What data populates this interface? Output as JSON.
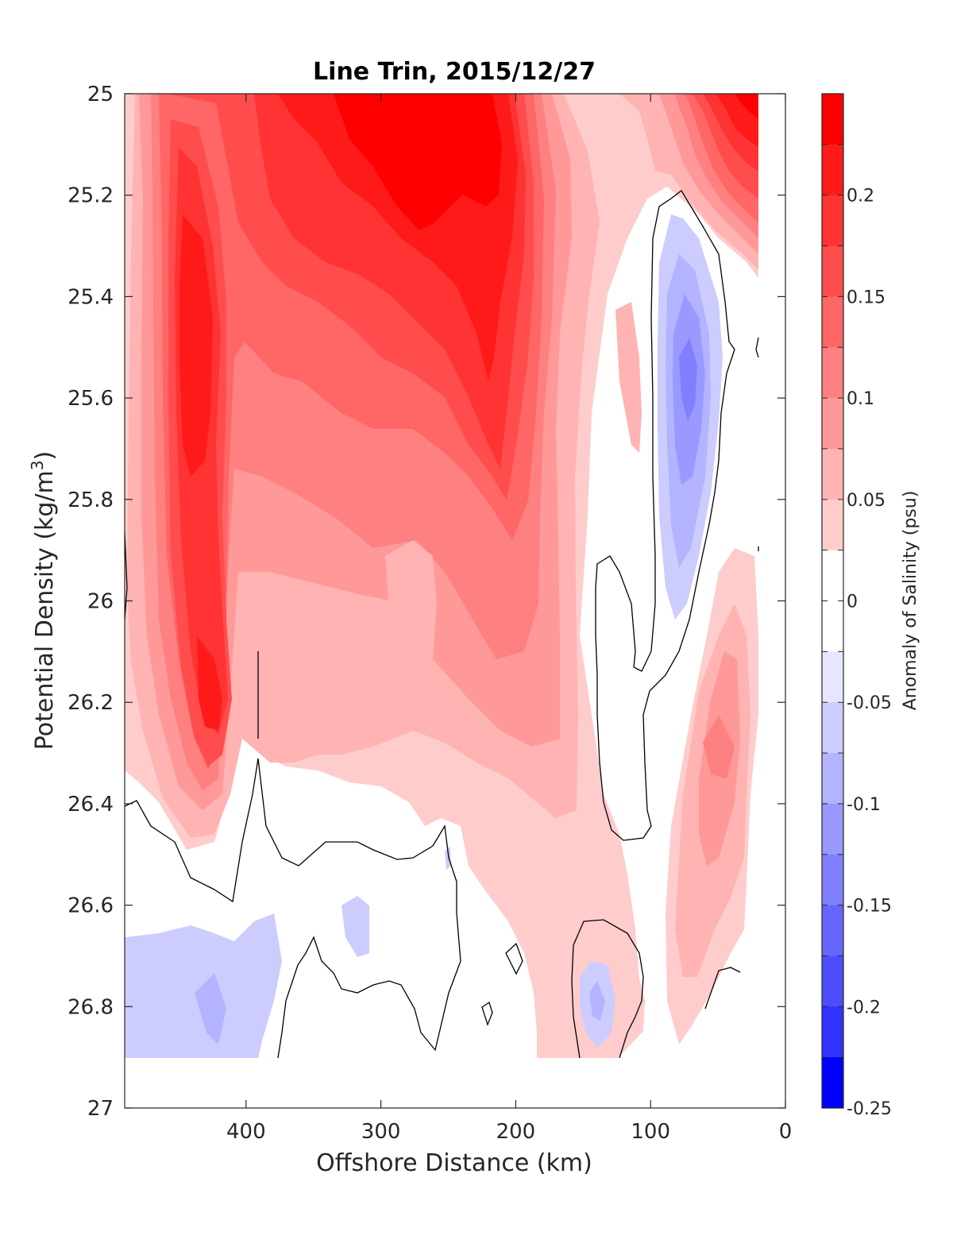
{
  "chart_data": {
    "type": "heatmap",
    "subtype": "filled-contour",
    "title": "Line Trin, 2015/12/27",
    "xlabel": "Offshore Distance (km)",
    "ylabel_main": "Potential Density (kg/m",
    "ylabel_sup": "3",
    "ylabel_close": ")",
    "xlim": [
      490,
      0
    ],
    "ylim": [
      27,
      25
    ],
    "x_reversed": true,
    "y_reversed": true,
    "x_ticks": [
      400,
      300,
      200,
      100,
      0
    ],
    "x_tick_labels": [
      "400",
      "300",
      "200",
      "100",
      "0"
    ],
    "y_ticks": [
      25,
      25.2,
      25.4,
      25.6,
      25.8,
      26,
      26.2,
      26.4,
      26.6,
      26.8,
      27
    ],
    "y_tick_labels": [
      "25",
      "25.2",
      "25.4",
      "25.6",
      "25.8",
      "26",
      "26.2",
      "26.4",
      "26.6",
      "26.8",
      "27"
    ],
    "grid": false,
    "zero_contour_line": true,
    "colorbar": {
      "label": "Anomaly of Salinity (psu)",
      "placement": "right",
      "range": [
        -0.25,
        0.25
      ],
      "tick_values": [
        0.2,
        0.15,
        0.1,
        0.05,
        0,
        -0.05,
        -0.1,
        -0.15,
        -0.2,
        -0.25
      ],
      "tick_labels": [
        "0.2",
        "0.15",
        "0.1",
        "0.05",
        "0",
        "-0.05",
        "-0.1",
        "-0.15",
        "-0.2",
        "-0.25"
      ],
      "levels": [
        {
          "from": 0.225,
          "to": 0.25,
          "color": "#ff0000"
        },
        {
          "from": 0.2,
          "to": 0.225,
          "color": "#ff1a1a"
        },
        {
          "from": 0.175,
          "to": 0.2,
          "color": "#ff3333"
        },
        {
          "from": 0.15,
          "to": 0.175,
          "color": "#ff4d4d"
        },
        {
          "from": 0.125,
          "to": 0.15,
          "color": "#ff6666"
        },
        {
          "from": 0.1,
          "to": 0.125,
          "color": "#ff8080"
        },
        {
          "from": 0.075,
          "to": 0.1,
          "color": "#ff9999"
        },
        {
          "from": 0.05,
          "to": 0.075,
          "color": "#ffb3b3"
        },
        {
          "from": 0.025,
          "to": 0.05,
          "color": "#ffcccc"
        },
        {
          "from": 0,
          "to": 0.025,
          "color": "#ffffff"
        },
        {
          "from": -0.025,
          "to": 0,
          "color": "#ffffff"
        },
        {
          "from": -0.05,
          "to": -0.025,
          "color": "#e6e6ff"
        },
        {
          "from": -0.075,
          "to": -0.05,
          "color": "#ccccff"
        },
        {
          "from": -0.1,
          "to": -0.075,
          "color": "#b3b3ff"
        },
        {
          "from": -0.125,
          "to": -0.1,
          "color": "#9999ff"
        },
        {
          "from": -0.15,
          "to": -0.125,
          "color": "#8080ff"
        },
        {
          "from": -0.175,
          "to": -0.15,
          "color": "#6666ff"
        },
        {
          "from": -0.2,
          "to": -0.175,
          "color": "#4d4dff"
        },
        {
          "from": -0.225,
          "to": -0.2,
          "color": "#3333ff"
        },
        {
          "from": -0.25,
          "to": -0.225,
          "color": "#0000ff"
        }
      ]
    },
    "anomaly_features": [
      {
        "x": 440,
        "y": 25.5,
        "value": 0.19
      },
      {
        "x": 428,
        "y": 26.2,
        "value": 0.19
      },
      {
        "x": 310,
        "y": 25.15,
        "value": 0.2
      },
      {
        "x": 260,
        "y": 25.1,
        "value": 0.24
      },
      {
        "x": 210,
        "y": 25.15,
        "value": 0.24
      },
      {
        "x": 360,
        "y": 25.45,
        "value": 0.12
      },
      {
        "x": 215,
        "y": 25.55,
        "value": 0.15
      },
      {
        "x": 200,
        "y": 25.95,
        "value": 0.1
      },
      {
        "x": 35,
        "y": 25.05,
        "value": 0.21
      },
      {
        "x": 120,
        "y": 25.6,
        "value": 0.07
      },
      {
        "x": 50,
        "y": 26.3,
        "value": 0.09
      },
      {
        "x": 60,
        "y": 26.5,
        "value": 0.06
      },
      {
        "x": 270,
        "y": 26.0,
        "value": 0.04
      },
      {
        "x": 72,
        "y": 25.55,
        "value": -0.12
      },
      {
        "x": 80,
        "y": 25.8,
        "value": -0.07
      },
      {
        "x": 140,
        "y": 26.8,
        "value": -0.07
      },
      {
        "x": 430,
        "y": 26.8,
        "value": -0.07
      },
      {
        "x": 400,
        "y": 26.75,
        "value": -0.03
      },
      {
        "x": 330,
        "y": 26.63,
        "value": -0.03
      }
    ]
  }
}
